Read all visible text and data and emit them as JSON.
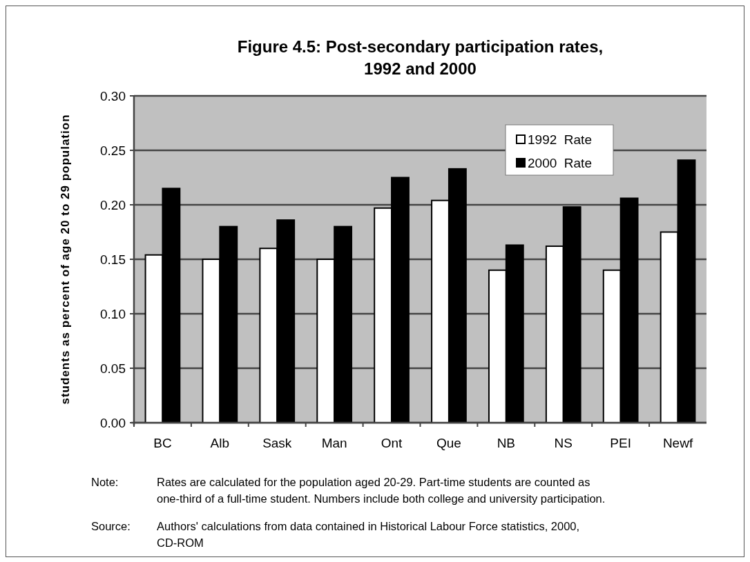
{
  "chart_data": {
    "type": "bar",
    "title": "Figure 4.5:  Post-secondary participation rates,\n1992 and 2000",
    "ylabel": "students as percent of age 20 to 29 population",
    "categories": [
      "BC",
      "Alb",
      "Sask",
      "Man",
      "Ont",
      "Que",
      "NB",
      "NS",
      "PEI",
      "Newf"
    ],
    "series": [
      {
        "name": "1992  Rate",
        "color": "#ffffff",
        "values": [
          0.154,
          0.15,
          0.16,
          0.15,
          0.197,
          0.204,
          0.14,
          0.162,
          0.14,
          0.175
        ]
      },
      {
        "name": "2000  Rate",
        "color": "#000000",
        "values": [
          0.215,
          0.18,
          0.186,
          0.18,
          0.225,
          0.233,
          0.163,
          0.198,
          0.206,
          0.241
        ]
      }
    ],
    "ylim": [
      0,
      0.3
    ],
    "yticks": [
      {
        "value": 0,
        "label": "0.00"
      },
      {
        "value": 0.05,
        "label": "0.05"
      },
      {
        "value": 0.1,
        "label": "0.10"
      },
      {
        "value": 0.15,
        "label": "0.15"
      },
      {
        "value": 0.2,
        "label": "0.20"
      },
      {
        "value": 0.25,
        "label": "0.25"
      },
      {
        "value": 0.3,
        "label": "0.30"
      }
    ],
    "grid": "y",
    "legend": "top right",
    "annotations": [
      "Note: Rates are calculated for the population aged 20-29. Part-time students are counted as one-third of a full-time student. Numbers include both college and university participation.",
      "Source: Authors' calculations from data contained in Historical Labour Force statistics, 2000, CD-ROM"
    ]
  }
}
